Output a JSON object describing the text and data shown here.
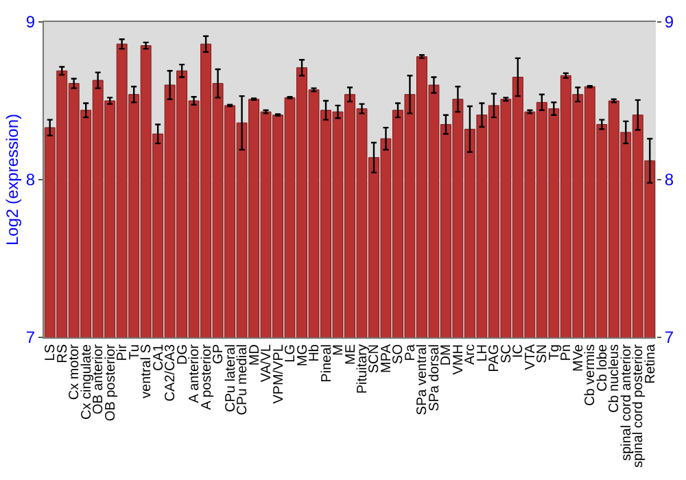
{
  "chart_data": {
    "type": "bar",
    "ylabel": "Log2 (expression)",
    "categories": [
      "LS",
      "RS",
      "Cx motor",
      "Cx cingulate",
      "OB anterior",
      "OB posterior",
      "Pir",
      "Tu",
      "ventral S",
      "CA1",
      "CA2/CA3",
      "DG",
      "A anterior",
      "A posterior",
      "GP",
      "CPu lateral",
      "CPu medial",
      "MD",
      "VA/VL",
      "VPM/VPL",
      "LG",
      "MG",
      "Hb",
      "Pineal",
      "M",
      "ME",
      "Pituitary",
      "SCN",
      "MPA",
      "SO",
      "Pa",
      "SPa ventral",
      "SPa dorsal",
      "DM",
      "VMH",
      "Arc",
      "LH",
      "PAG",
      "SC",
      "IC",
      "VTA",
      "SN",
      "Tg",
      "Pn",
      "MVe",
      "Cb vermis",
      "Cb lobe",
      "Cb nucleus",
      "spinal cord anterior",
      "spinal cord posterior",
      "Retina"
    ],
    "values": [
      8.33,
      8.69,
      8.61,
      8.44,
      8.63,
      8.5,
      8.86,
      8.54,
      8.85,
      8.29,
      8.6,
      8.69,
      8.5,
      8.86,
      8.61,
      8.47,
      8.36,
      8.51,
      8.43,
      8.41,
      8.52,
      8.71,
      8.57,
      8.44,
      8.43,
      8.54,
      8.45,
      8.14,
      8.26,
      8.44,
      8.54,
      8.78,
      8.6,
      8.35,
      8.51,
      8.32,
      8.41,
      8.47,
      8.51,
      8.65,
      8.43,
      8.49,
      8.45,
      8.66,
      8.54,
      8.59,
      8.35,
      8.5,
      8.3,
      8.41,
      8.12
    ],
    "errors": [
      0.05,
      0.025,
      0.03,
      0.045,
      0.05,
      0.02,
      0.03,
      0.05,
      0.02,
      0.06,
      0.09,
      0.04,
      0.025,
      0.05,
      0.09,
      0.005,
      0.17,
      0.005,
      0.01,
      0.005,
      0.005,
      0.05,
      0.01,
      0.06,
      0.04,
      0.045,
      0.03,
      0.095,
      0.07,
      0.045,
      0.12,
      0.01,
      0.05,
      0.06,
      0.08,
      0.145,
      0.075,
      0.075,
      0.01,
      0.12,
      0.01,
      0.05,
      0.04,
      0.015,
      0.045,
      0.005,
      0.03,
      0.01,
      0.07,
      0.095,
      0.14
    ],
    "color": "#b83232",
    "ylim": [
      7,
      9
    ],
    "yticks": [
      7,
      8,
      9
    ],
    "y2lim": [
      7,
      9
    ],
    "y2ticks": [
      7,
      8,
      9
    ],
    "grid": "y"
  }
}
